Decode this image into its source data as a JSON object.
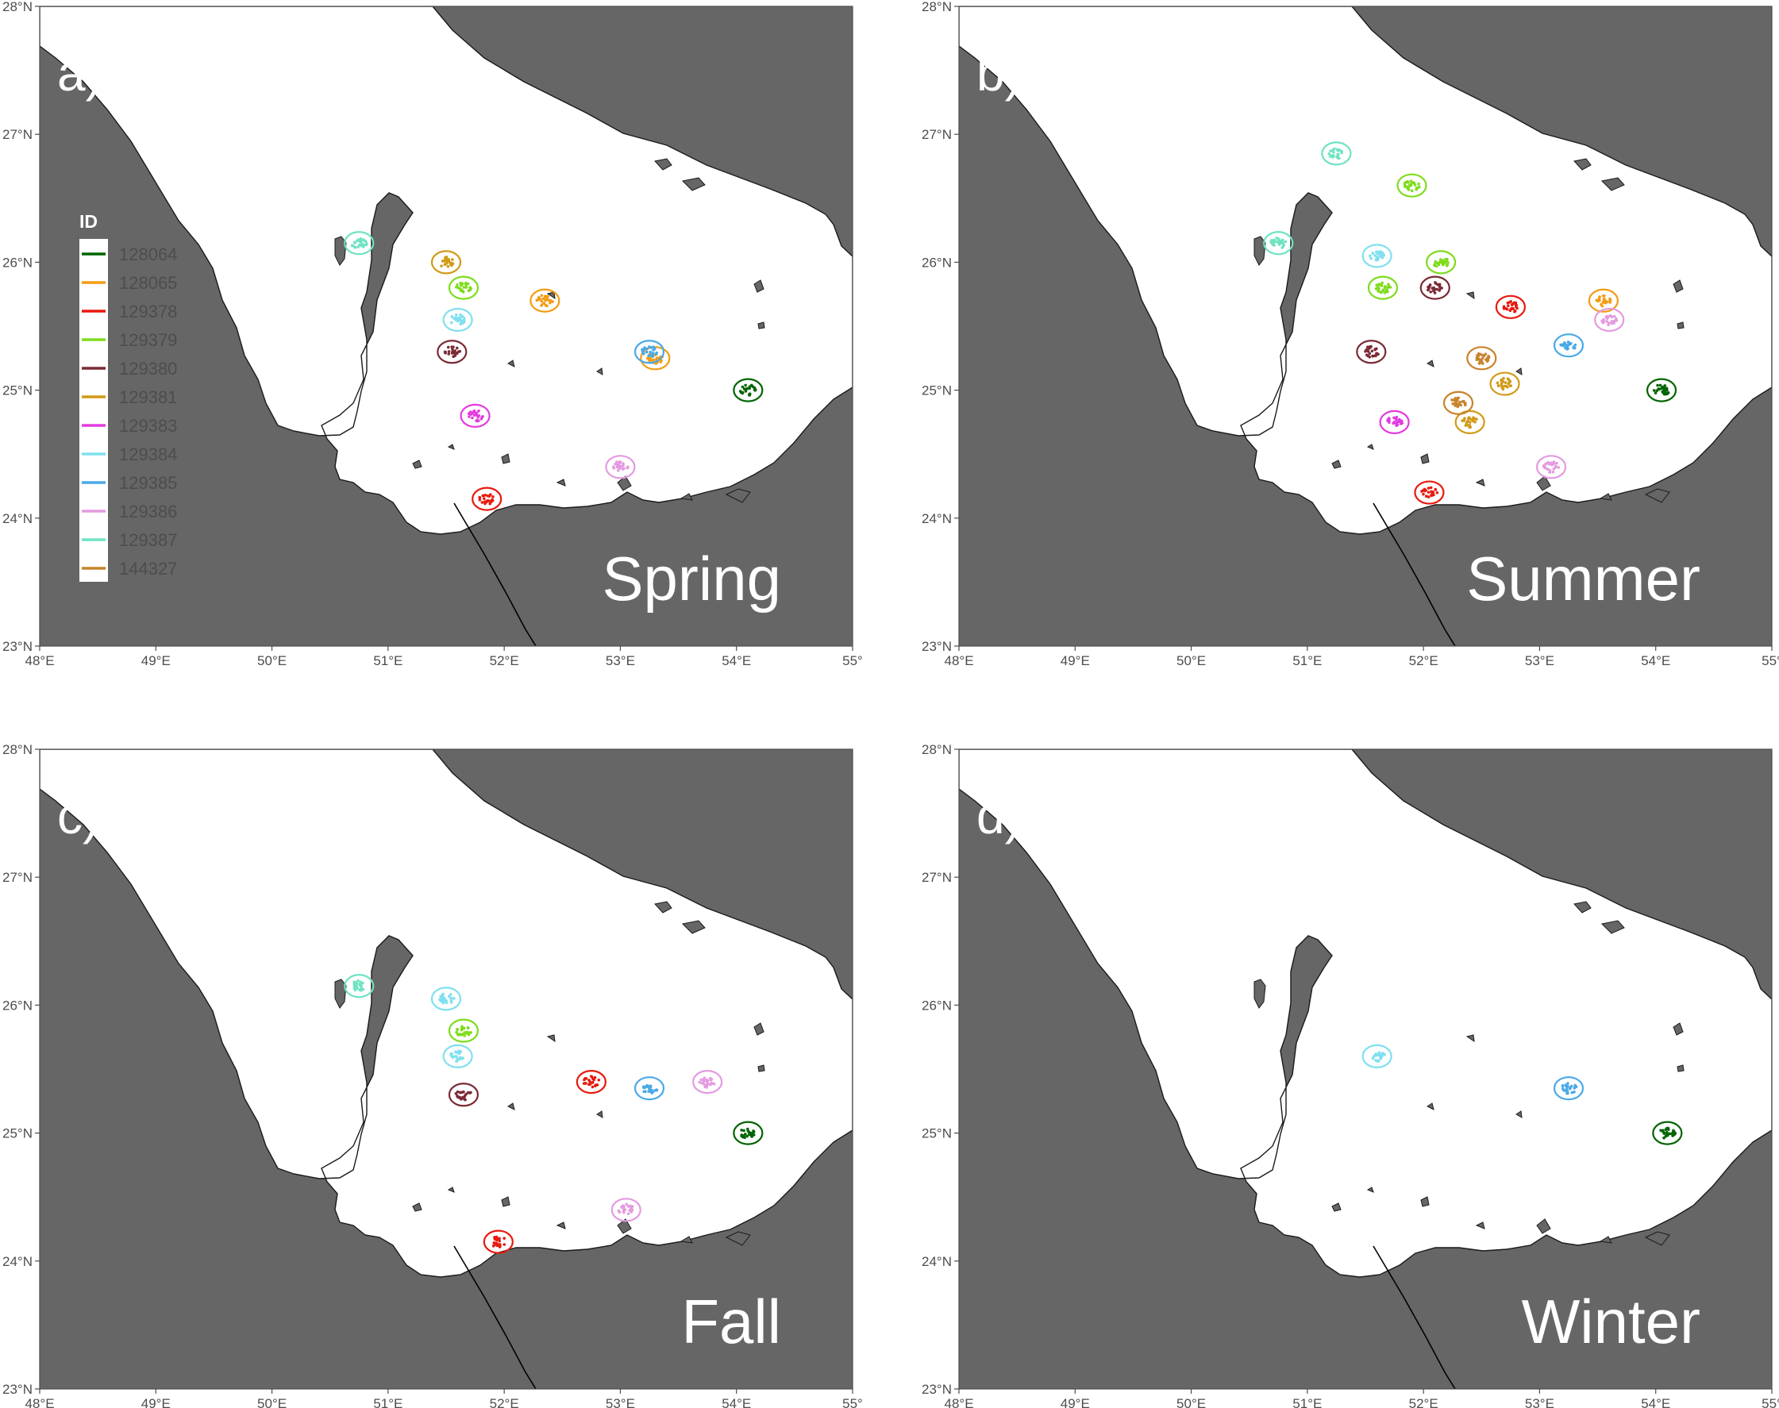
{
  "colors": {
    "land": "#666666",
    "sea": "#ffffff",
    "coast": "#1a1a1a",
    "axis": "#4d4d4d"
  },
  "axes": {
    "x_ticks": [
      48,
      49,
      50,
      51,
      52,
      53,
      54,
      55
    ],
    "x_tick_labels": [
      "48°E",
      "49°E",
      "50°E",
      "51°E",
      "52°E",
      "53°E",
      "54°E",
      "55°"
    ],
    "y_ticks": [
      23,
      24,
      25,
      26,
      27,
      28
    ],
    "y_tick_labels": [
      "23°N",
      "24°N",
      "25°N",
      "26°N",
      "27°N",
      "28°N"
    ],
    "xlim": [
      48,
      55
    ],
    "ylim": [
      23,
      28
    ]
  },
  "legend": {
    "title": "ID",
    "placement": "panel a, left",
    "items": [
      {
        "id": "128064",
        "color": "#006400"
      },
      {
        "id": "128065",
        "color": "#f39c12"
      },
      {
        "id": "129378",
        "color": "#e8190e"
      },
      {
        "id": "129379",
        "color": "#7fdc1c"
      },
      {
        "id": "129380",
        "color": "#7b2a35"
      },
      {
        "id": "129381",
        "color": "#d19a17"
      },
      {
        "id": "129383",
        "color": "#e33be0"
      },
      {
        "id": "129384",
        "color": "#7fe0ef"
      },
      {
        "id": "129385",
        "color": "#4aa9e8"
      },
      {
        "id": "129386",
        "color": "#e49ae0"
      },
      {
        "id": "129387",
        "color": "#6fe3c3"
      },
      {
        "id": "144327",
        "color": "#c8832c"
      }
    ]
  },
  "panels": [
    {
      "label": "a)",
      "season": "Spring"
    },
    {
      "label": "b)",
      "season": "Summer"
    },
    {
      "label": "c)",
      "season": "Fall"
    },
    {
      "label": "d)",
      "season": "Winter"
    }
  ],
  "chart_data": {
    "type": "scatter",
    "series": [
      {
        "name": "128064",
        "clusters": [
          {
            "season": "Spring",
            "lon": 54.1,
            "lat": 25.0
          },
          {
            "season": "Summer",
            "lon": 54.05,
            "lat": 25.0
          },
          {
            "season": "Fall",
            "lon": 54.1,
            "lat": 25.0
          },
          {
            "season": "Winter",
            "lon": 54.1,
            "lat": 25.0
          }
        ]
      },
      {
        "name": "128065",
        "clusters": [
          {
            "season": "Spring",
            "lon": 52.35,
            "lat": 25.7
          },
          {
            "season": "Spring",
            "lon": 53.3,
            "lat": 25.25
          },
          {
            "season": "Summer",
            "lon": 53.55,
            "lat": 25.7
          }
        ]
      },
      {
        "name": "129378",
        "clusters": [
          {
            "season": "Spring",
            "lon": 51.85,
            "lat": 24.15
          },
          {
            "season": "Summer",
            "lon": 52.05,
            "lat": 24.2
          },
          {
            "season": "Summer",
            "lon": 52.75,
            "lat": 25.65
          },
          {
            "season": "Fall",
            "lon": 51.95,
            "lat": 24.15
          },
          {
            "season": "Fall",
            "lon": 52.75,
            "lat": 25.4
          }
        ]
      },
      {
        "name": "129379",
        "clusters": [
          {
            "season": "Spring",
            "lon": 51.65,
            "lat": 25.8
          },
          {
            "season": "Summer",
            "lon": 51.9,
            "lat": 26.6
          },
          {
            "season": "Summer",
            "lon": 52.15,
            "lat": 26.0
          },
          {
            "season": "Summer",
            "lon": 51.65,
            "lat": 25.8
          },
          {
            "season": "Fall",
            "lon": 51.65,
            "lat": 25.8
          }
        ]
      },
      {
        "name": "129380",
        "clusters": [
          {
            "season": "Spring",
            "lon": 51.55,
            "lat": 25.3
          },
          {
            "season": "Summer",
            "lon": 51.55,
            "lat": 25.3
          },
          {
            "season": "Summer",
            "lon": 52.1,
            "lat": 25.8
          },
          {
            "season": "Fall",
            "lon": 51.65,
            "lat": 25.3
          }
        ]
      },
      {
        "name": "129381",
        "clusters": [
          {
            "season": "Spring",
            "lon": 51.5,
            "lat": 26.0
          },
          {
            "season": "Summer",
            "lon": 52.7,
            "lat": 25.05
          },
          {
            "season": "Summer",
            "lon": 52.4,
            "lat": 24.75
          }
        ]
      },
      {
        "name": "129383",
        "clusters": [
          {
            "season": "Spring",
            "lon": 51.75,
            "lat": 24.8
          },
          {
            "season": "Summer",
            "lon": 51.75,
            "lat": 24.75
          }
        ]
      },
      {
        "name": "129384",
        "clusters": [
          {
            "season": "Spring",
            "lon": 51.6,
            "lat": 25.55
          },
          {
            "season": "Summer",
            "lon": 51.6,
            "lat": 26.05
          },
          {
            "season": "Fall",
            "lon": 51.6,
            "lat": 25.6
          },
          {
            "season": "Fall",
            "lon": 51.5,
            "lat": 26.05
          },
          {
            "season": "Winter",
            "lon": 51.6,
            "lat": 25.6
          }
        ]
      },
      {
        "name": "129385",
        "clusters": [
          {
            "season": "Spring",
            "lon": 53.25,
            "lat": 25.3
          },
          {
            "season": "Summer",
            "lon": 53.25,
            "lat": 25.35
          },
          {
            "season": "Fall",
            "lon": 53.25,
            "lat": 25.35
          },
          {
            "season": "Winter",
            "lon": 53.25,
            "lat": 25.35
          }
        ]
      },
      {
        "name": "129386",
        "clusters": [
          {
            "season": "Spring",
            "lon": 53.0,
            "lat": 24.4
          },
          {
            "season": "Summer",
            "lon": 53.6,
            "lat": 25.55
          },
          {
            "season": "Summer",
            "lon": 53.1,
            "lat": 24.4
          },
          {
            "season": "Fall",
            "lon": 53.05,
            "lat": 24.4
          },
          {
            "season": "Fall",
            "lon": 53.75,
            "lat": 25.4
          }
        ]
      },
      {
        "name": "129387",
        "clusters": [
          {
            "season": "Spring",
            "lon": 50.75,
            "lat": 26.15
          },
          {
            "season": "Summer",
            "lon": 51.25,
            "lat": 26.85
          },
          {
            "season": "Summer",
            "lon": 50.75,
            "lat": 26.15
          },
          {
            "season": "Fall",
            "lon": 50.75,
            "lat": 26.15
          }
        ]
      },
      {
        "name": "144327",
        "clusters": [
          {
            "season": "Summer",
            "lon": 52.5,
            "lat": 25.25
          },
          {
            "season": "Summer",
            "lon": 52.3,
            "lat": 24.9
          }
        ]
      }
    ]
  }
}
